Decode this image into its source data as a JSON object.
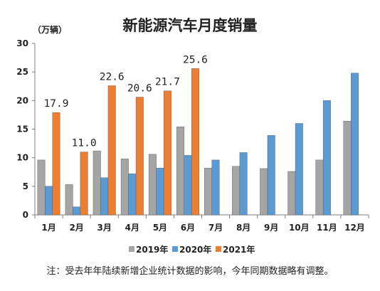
{
  "chart_data": {
    "type": "bar",
    "title": "新能源汽车月度销量",
    "unit_label": "（万辆）",
    "categories": [
      "1月",
      "2月",
      "3月",
      "4月",
      "5月",
      "6月",
      "7月",
      "8月",
      "9月",
      "10月",
      "11月",
      "12月"
    ],
    "ylim": [
      0,
      30
    ],
    "yticks": [
      0,
      5,
      10,
      15,
      20,
      25,
      30
    ],
    "grid": false,
    "legend_position": "bottom",
    "series": [
      {
        "name": "2019年",
        "color": "#a5a5a5",
        "values": [
          9.6,
          5.3,
          11.2,
          9.8,
          10.6,
          15.4,
          8.2,
          8.5,
          8.1,
          7.6,
          9.6,
          16.4
        ]
      },
      {
        "name": "2020年",
        "color": "#5b9bd5",
        "values": [
          5.0,
          1.4,
          6.5,
          7.2,
          8.2,
          10.4,
          9.6,
          10.9,
          13.9,
          16.0,
          20.0,
          24.8
        ]
      },
      {
        "name": "2021年",
        "color": "#ed7d31",
        "values": [
          17.9,
          11.0,
          22.6,
          20.6,
          21.7,
          25.6,
          null,
          null,
          null,
          null,
          null,
          null
        ],
        "data_labels": [
          "17.9",
          "11.0",
          "22.6",
          "20.6",
          "21.7",
          "25.6"
        ]
      }
    ]
  },
  "footnote": "注：受去年年陆续新增企业统计数据的影响，今年同期数据略有调整。"
}
